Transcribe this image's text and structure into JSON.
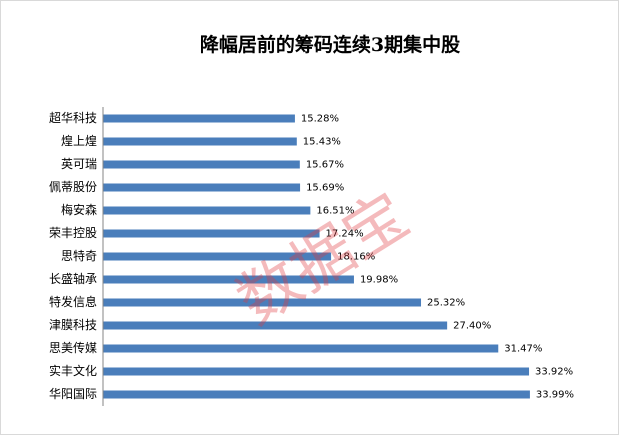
{
  "chart_data": {
    "type": "bar",
    "orientation": "horizontal",
    "title": "降幅居前的筹码连续3期集中股",
    "categories": [
      "超华科技",
      "煌上煌",
      "英可瑞",
      "佩蒂股份",
      "梅安森",
      "荣丰控股",
      "思特奇",
      "长盛轴承",
      "特发信息",
      "津膜科技",
      "思美传媒",
      "实丰文化",
      "华阳国际"
    ],
    "values": [
      15.28,
      15.43,
      15.67,
      15.69,
      16.51,
      17.24,
      18.16,
      19.98,
      25.32,
      27.4,
      31.47,
      33.92,
      33.99
    ],
    "value_labels": [
      "15.28%",
      "15.43%",
      "15.67%",
      "15.69%",
      "16.51%",
      "17.24%",
      "18.16%",
      "19.98%",
      "25.32%",
      "27.40%",
      "31.47%",
      "33.92%",
      "33.99%"
    ],
    "color": "#4a7ebb",
    "watermark": "数据宝"
  }
}
